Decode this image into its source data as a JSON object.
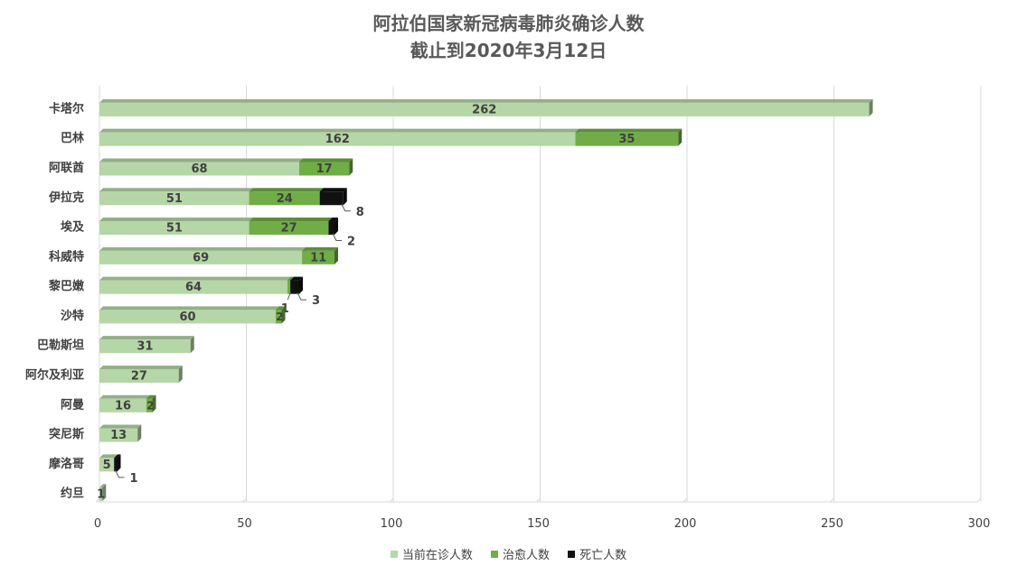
{
  "chart_data": {
    "type": "bar",
    "orientation": "horizontal",
    "stacked": true,
    "title": "阿拉伯国家新冠病毒肺炎确诊人数",
    "subtitle": "截止到2020年3月12日",
    "categories": [
      "卡塔尔",
      "巴林",
      "阿联酋",
      "伊拉克",
      "埃及",
      "科威特",
      "黎巴嫩",
      "沙特",
      "巴勒斯坦",
      "阿尔及利亚",
      "阿曼",
      "突尼斯",
      "摩洛哥",
      "约旦"
    ],
    "series": [
      {
        "name": "当前在诊人数",
        "color": "#b5d6a6",
        "values": [
          262,
          162,
          68,
          51,
          51,
          69,
          64,
          60,
          31,
          27,
          16,
          13,
          5,
          1
        ]
      },
      {
        "name": "治愈人数",
        "color": "#70ad47",
        "values": [
          0,
          35,
          17,
          24,
          27,
          11,
          1,
          2,
          0,
          0,
          2,
          0,
          0,
          0
        ]
      },
      {
        "name": "死亡人数",
        "color": "#111111",
        "values": [
          0,
          0,
          0,
          8,
          2,
          0,
          3,
          0,
          0,
          0,
          0,
          0,
          1,
          0
        ]
      }
    ],
    "xlim": [
      0,
      300
    ],
    "xticks": [
      0,
      50,
      100,
      150,
      200,
      250,
      300
    ],
    "grid": true,
    "legend_position": "bottom"
  }
}
